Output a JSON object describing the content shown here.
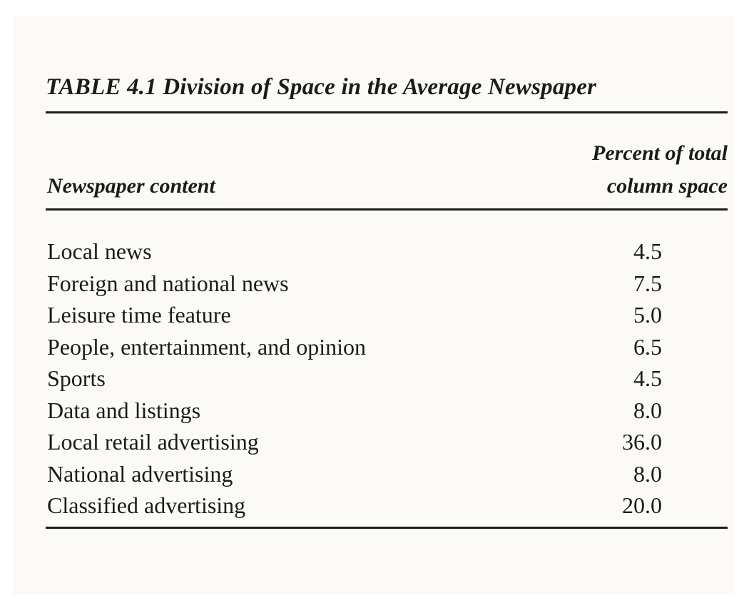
{
  "table": {
    "caption": "TABLE 4.1 Division of Space in the Average Newspaper",
    "column_headers": {
      "content": "Newspaper content",
      "percent_line1": "Percent of total",
      "percent_line2": "column space"
    },
    "rows": [
      {
        "label": "Local news",
        "value": "4.5"
      },
      {
        "label": "Foreign and national news",
        "value": "7.5"
      },
      {
        "label": "Leisure time feature",
        "value": "5.0"
      },
      {
        "label": "People, entertainment, and opinion",
        "value": "6.5"
      },
      {
        "label": "Sports",
        "value": "4.5"
      },
      {
        "label": "Data and listings",
        "value": "8.0"
      },
      {
        "label": "Local retail advertising",
        "value": "36.0"
      },
      {
        "label": "National advertising",
        "value": "8.0"
      },
      {
        "label": "Classified advertising",
        "value": "20.0"
      }
    ]
  }
}
